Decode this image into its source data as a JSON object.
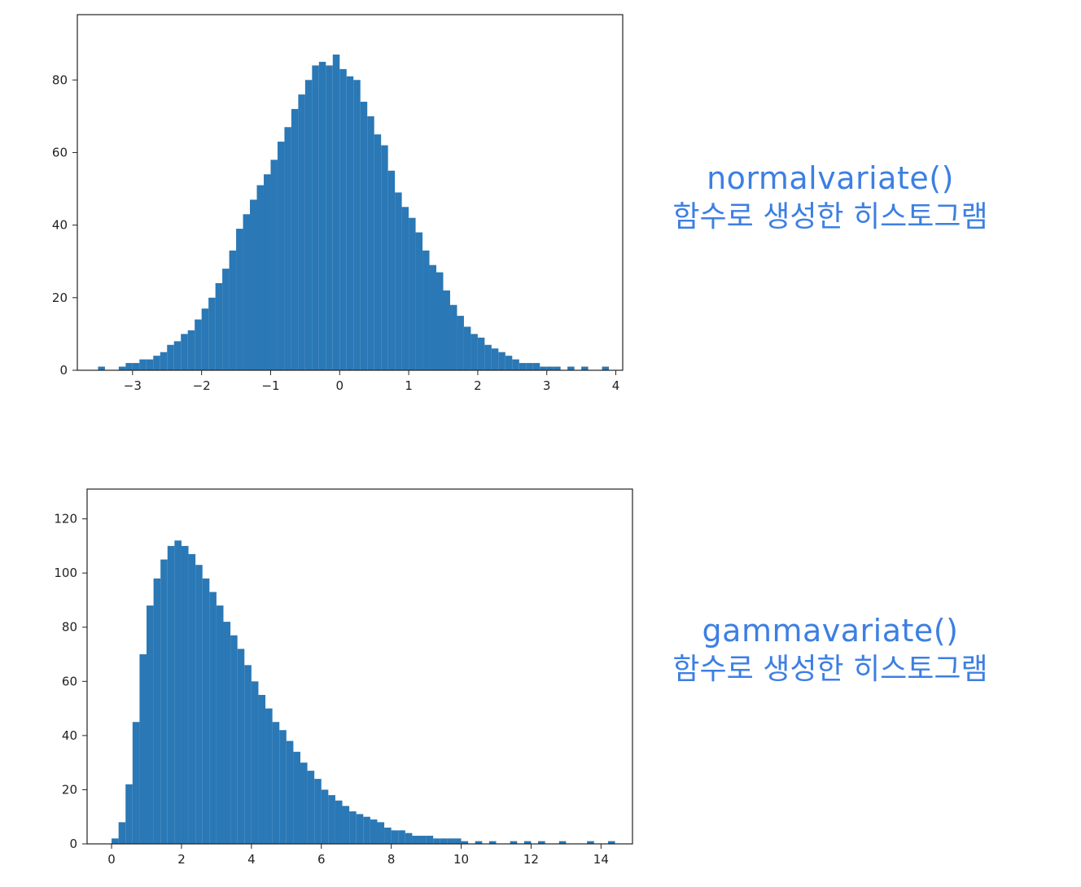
{
  "captions": [
    {
      "function": "normalvariate()",
      "description": "함수로 생성한 히스토그램"
    },
    {
      "function": "gammavariate()",
      "description": "함수로 생성한 히스토그램"
    }
  ],
  "style": {
    "bar_color": "#2a78b5",
    "caption_color": "#3d7fe3",
    "axis_color": "#222222"
  },
  "chart_data": [
    {
      "type": "bar",
      "title": "",
      "xlabel": "",
      "ylabel": "",
      "xlim": [
        -3.8,
        4.1
      ],
      "ylim": [
        0,
        98
      ],
      "grid": false,
      "xticks": [
        -3,
        -2,
        -1,
        0,
        1,
        2,
        3,
        4
      ],
      "xtick_labels": [
        "−3",
        "−2",
        "−1",
        "0",
        "1",
        "2",
        "3",
        "4"
      ],
      "yticks": [
        0,
        20,
        40,
        60,
        80
      ],
      "bin_width": 0.1,
      "x": [
        -3.5,
        -3.2,
        -3.1,
        -3.0,
        -2.9,
        -2.8,
        -2.7,
        -2.6,
        -2.5,
        -2.4,
        -2.3,
        -2.2,
        -2.1,
        -2.0,
        -1.9,
        -1.8,
        -1.7,
        -1.6,
        -1.5,
        -1.4,
        -1.3,
        -1.2,
        -1.1,
        -1.0,
        -0.9,
        -0.8,
        -0.7,
        -0.6,
        -0.5,
        -0.4,
        -0.3,
        -0.2,
        -0.1,
        0.0,
        0.1,
        0.2,
        0.3,
        0.4,
        0.5,
        0.6,
        0.7,
        0.8,
        0.9,
        1.0,
        1.1,
        1.2,
        1.3,
        1.4,
        1.5,
        1.6,
        1.7,
        1.8,
        1.9,
        2.0,
        2.1,
        2.2,
        2.3,
        2.4,
        2.5,
        2.6,
        2.7,
        2.8,
        2.9,
        3.0,
        3.1,
        3.3,
        3.5,
        3.8
      ],
      "values": [
        1,
        1,
        2,
        2,
        3,
        3,
        4,
        5,
        7,
        8,
        10,
        11,
        14,
        17,
        20,
        24,
        28,
        33,
        39,
        43,
        47,
        51,
        54,
        58,
        63,
        67,
        72,
        76,
        80,
        84,
        85,
        84,
        87,
        83,
        81,
        80,
        74,
        70,
        65,
        62,
        55,
        49,
        45,
        42,
        38,
        33,
        29,
        27,
        22,
        18,
        15,
        12,
        10,
        9,
        7,
        6,
        5,
        4,
        3,
        2,
        2,
        2,
        1,
        1,
        1,
        1,
        1,
        1
      ]
    },
    {
      "type": "bar",
      "title": "",
      "xlabel": "",
      "ylabel": "",
      "xlim": [
        -0.7,
        14.9
      ],
      "ylim": [
        0,
        131
      ],
      "grid": false,
      "xticks": [
        0,
        2,
        4,
        6,
        8,
        10,
        12,
        14
      ],
      "xtick_labels": [
        "0",
        "2",
        "4",
        "6",
        "8",
        "10",
        "12",
        "14"
      ],
      "yticks": [
        0,
        20,
        40,
        60,
        80,
        100,
        120
      ],
      "bin_width": 0.2,
      "x": [
        0.0,
        0.2,
        0.4,
        0.6,
        0.8,
        1.0,
        1.2,
        1.4,
        1.6,
        1.8,
        2.0,
        2.2,
        2.4,
        2.6,
        2.8,
        3.0,
        3.2,
        3.4,
        3.6,
        3.8,
        4.0,
        4.2,
        4.4,
        4.6,
        4.8,
        5.0,
        5.2,
        5.4,
        5.6,
        5.8,
        6.0,
        6.2,
        6.4,
        6.6,
        6.8,
        7.0,
        7.2,
        7.4,
        7.6,
        7.8,
        8.0,
        8.2,
        8.4,
        8.6,
        8.8,
        9.0,
        9.2,
        9.4,
        9.6,
        9.8,
        10.0,
        10.4,
        10.8,
        11.4,
        11.8,
        12.2,
        12.8,
        13.6,
        14.2
      ],
      "values": [
        2,
        8,
        22,
        45,
        70,
        88,
        98,
        105,
        110,
        112,
        110,
        107,
        103,
        98,
        93,
        88,
        82,
        77,
        72,
        66,
        60,
        55,
        50,
        45,
        42,
        38,
        34,
        30,
        27,
        24,
        20,
        18,
        16,
        14,
        12,
        11,
        10,
        9,
        8,
        6,
        5,
        5,
        4,
        3,
        3,
        3,
        2,
        2,
        2,
        2,
        1,
        1,
        1,
        1,
        1,
        1,
        1,
        1,
        1
      ]
    }
  ]
}
